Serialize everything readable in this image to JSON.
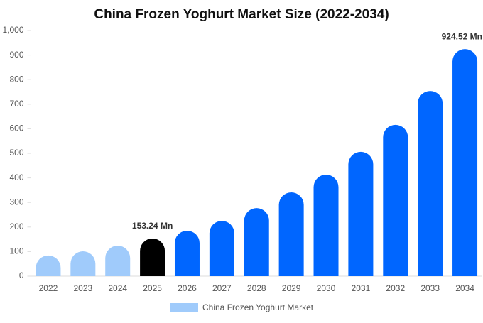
{
  "chart_data": {
    "type": "bar",
    "title": "China Frozen Yoghurt Market Size (2022-2034)",
    "categories": [
      "2022",
      "2023",
      "2024",
      "2025",
      "2026",
      "2027",
      "2028",
      "2029",
      "2030",
      "2031",
      "2032",
      "2033",
      "2034"
    ],
    "series": [
      {
        "name": "China Frozen Yoghurt Market",
        "color": "#a0cbfb",
        "colors": [
          "#a0cbfb",
          "#a0cbfb",
          "#a0cbfb",
          "#000000",
          "#0066ff",
          "#0066ff",
          "#0066ff",
          "#0066ff",
          "#0066ff",
          "#0066ff",
          "#0066ff",
          "#0066ff",
          "#0066ff"
        ],
        "values": [
          84,
          101,
          124,
          153.24,
          185,
          225,
          277,
          341,
          413,
          506,
          616,
          754,
          924.52
        ],
        "value_labels": [
          null,
          null,
          null,
          "153.24 Mn",
          null,
          null,
          null,
          null,
          null,
          null,
          null,
          null,
          "924.52 Mn"
        ]
      }
    ],
    "ylim": [
      0,
      1000
    ],
    "yticks": [
      0,
      100,
      200,
      300,
      400,
      500,
      600,
      700,
      800,
      900,
      {
        "value": 1000,
        "label": "1,000"
      }
    ],
    "legend": "bottom"
  }
}
